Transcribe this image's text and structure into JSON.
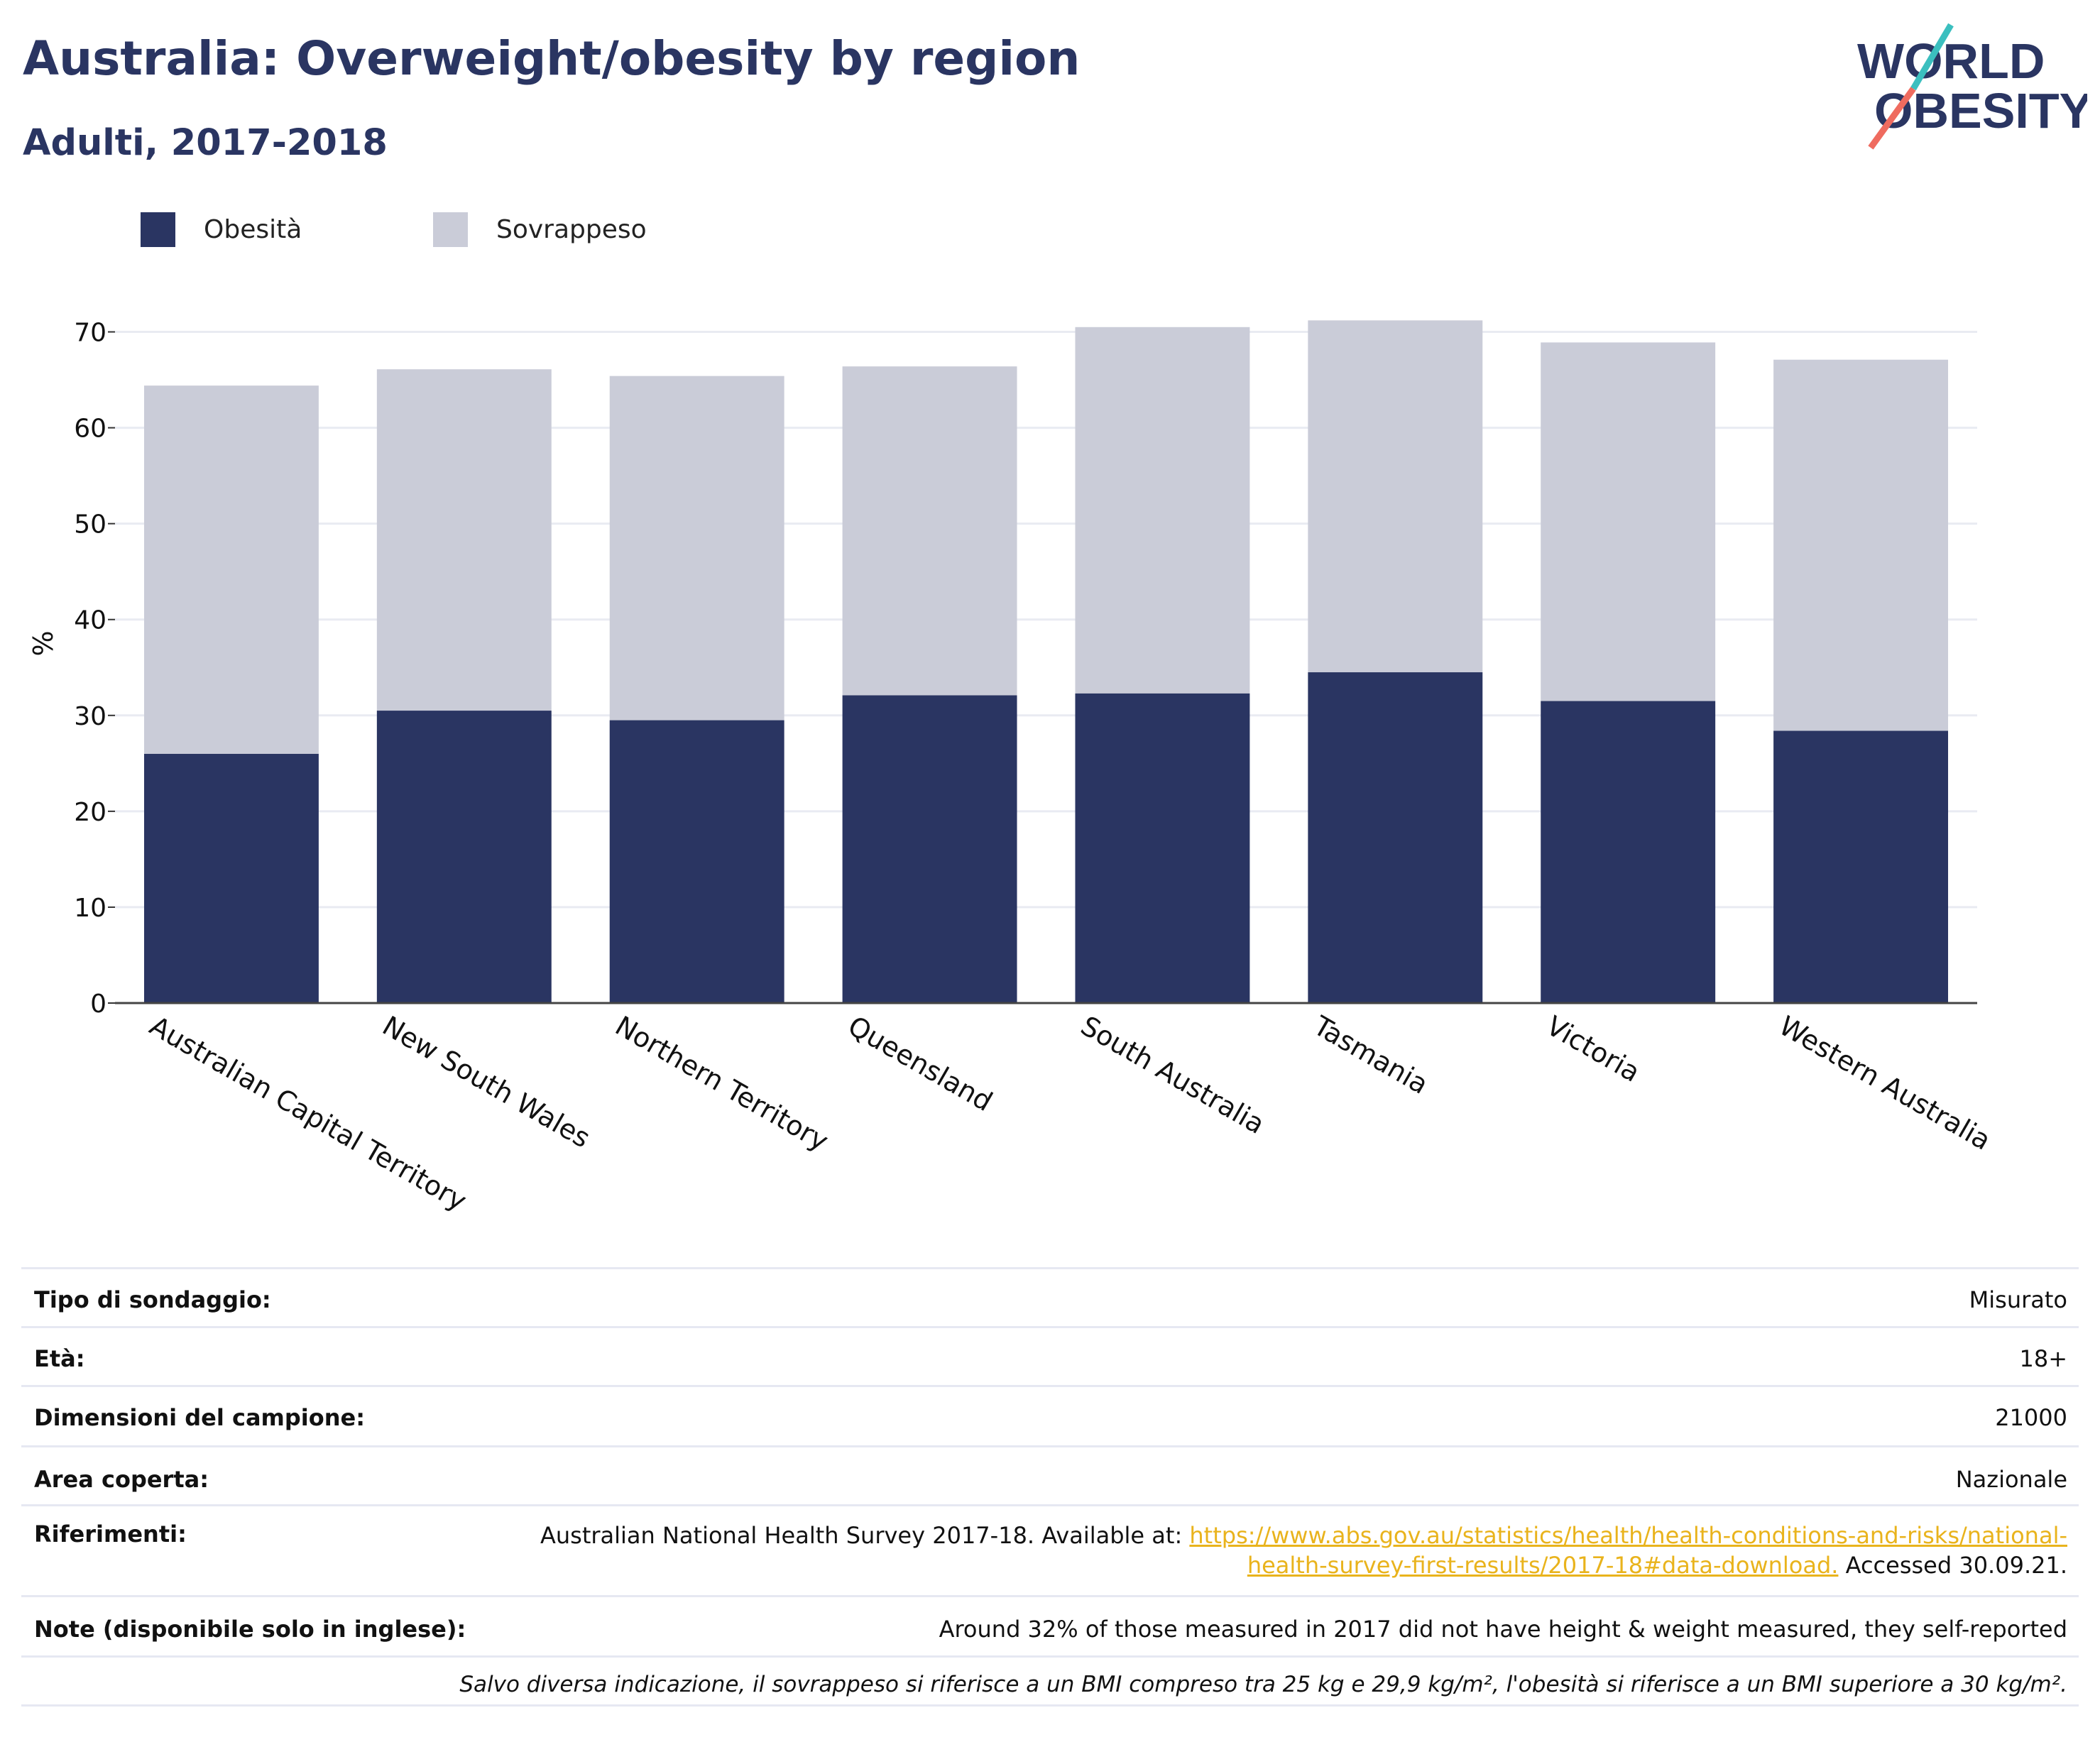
{
  "header": {
    "title": "Australia: Overweight/obesity by region",
    "subtitle": "Adulti, 2017-2018"
  },
  "logo": {
    "line1": "WORLD",
    "line2": "OBESITY"
  },
  "colors": {
    "obesity": "#2a3562",
    "overweight": "#caccd8",
    "title": "#2a3562",
    "link": "#e9b31c",
    "grid": "#e9ebf2"
  },
  "legend": [
    {
      "label": "Obesità",
      "color": "#2a3562"
    },
    {
      "label": "Sovrappeso",
      "color": "#caccd8"
    }
  ],
  "chart_data": {
    "type": "bar",
    "stacked": true,
    "ylabel": "%",
    "ylim": [
      0,
      75
    ],
    "yticks": [
      0,
      10,
      20,
      30,
      40,
      50,
      60,
      70
    ],
    "grid": true,
    "legend_position": "top-left",
    "categories": [
      "Australian Capital Territory",
      "New South Wales",
      "Northern Territory",
      "Queensland",
      "South Australia",
      "Tasmania",
      "Victoria",
      "Western Australia"
    ],
    "series": [
      {
        "name": "Obesità",
        "values": [
          26.0,
          30.5,
          29.5,
          32.1,
          32.3,
          34.5,
          31.5,
          28.4
        ]
      },
      {
        "name": "Sovrappeso",
        "values": [
          38.4,
          35.6,
          35.9,
          34.3,
          38.2,
          36.7,
          37.4,
          38.7
        ]
      }
    ]
  },
  "info": {
    "survey_type": {
      "label": "Tipo di sondaggio:",
      "value": "Misurato"
    },
    "age": {
      "label": "Età:",
      "value": "18+"
    },
    "sample_size": {
      "label": "Dimensioni del campione:",
      "value": "21000"
    },
    "area": {
      "label": "Area coperta:",
      "value": "Nazionale"
    },
    "references": {
      "label": "Riferimenti:",
      "text_before": "Australian National Health Survey 2017-18. Available at: ",
      "link_line1": "https://www.abs.gov.au/statistics/health/health-conditions-and-risks/national-",
      "link_line2": "health-survey-first-results/2017-18#data-download.",
      "text_after": " Accessed 30.09.21."
    },
    "notes": {
      "label": "Note (disponibile solo in inglese):",
      "value": "Around 32% of those measured in 2017 did not have height & weight measured, they self-reported"
    },
    "footnote": "Salvo diversa indicazione, il sovrappeso si riferisce a un BMI compreso tra 25 kg e 29,9 kg/m², l'obesità si riferisce a un BMI superiore a 30 kg/m²."
  }
}
